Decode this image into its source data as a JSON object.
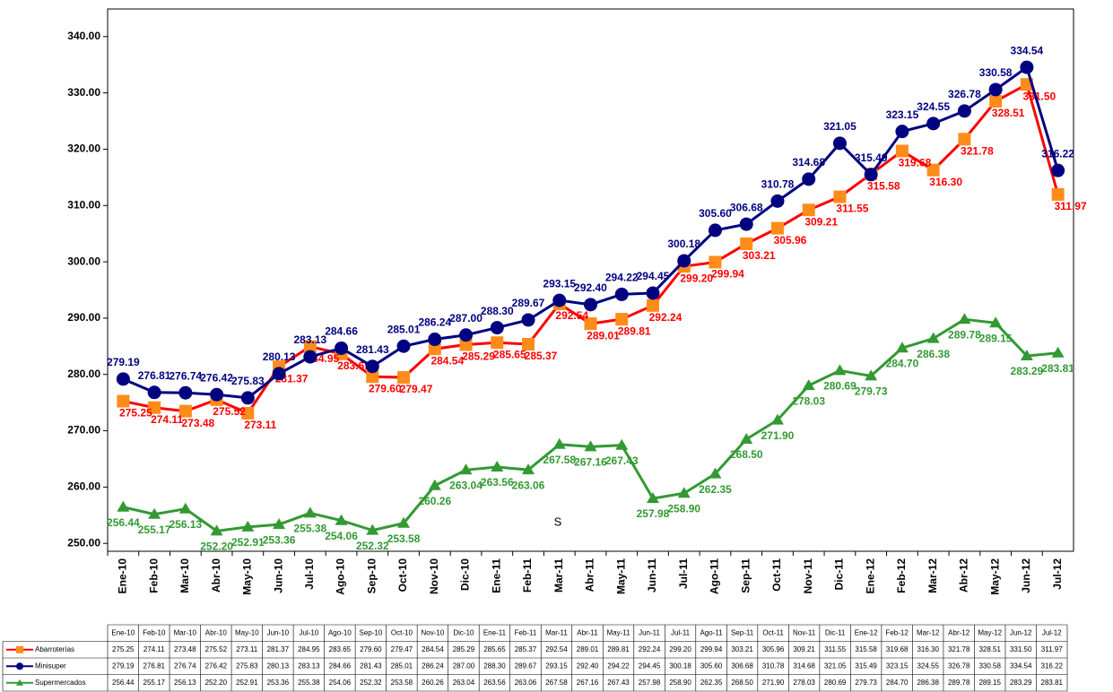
{
  "chart_data": {
    "type": "line",
    "categories": [
      "Ene-10",
      "Feb-10",
      "Mar-10",
      "Abr-10",
      "May-10",
      "Jun-10",
      "Jul-10",
      "Ago-10",
      "Sep-10",
      "Oct-10",
      "Nov-10",
      "Dic-10",
      "Ene-11",
      "Feb-11",
      "Mar-11",
      "Abr-11",
      "May-11",
      "Jun-11",
      "Jul-11",
      "Ago-11",
      "Sep-11",
      "Oct-11",
      "Nov-11",
      "Dic-11",
      "Ene-12",
      "Feb-12",
      "Mar-12",
      "Abr-12",
      "May-12",
      "Jun-12",
      "Jul-12"
    ],
    "series": [
      {
        "name": "Abarroterías",
        "color": "#ff0000",
        "marker_color": "#ff8c1a",
        "marker": "square",
        "values": [
          275.25,
          274.11,
          273.48,
          275.52,
          273.11,
          281.37,
          284.95,
          283.65,
          279.6,
          279.47,
          284.54,
          285.29,
          285.65,
          285.37,
          292.54,
          289.01,
          289.81,
          292.24,
          299.2,
          299.94,
          303.21,
          305.96,
          309.21,
          311.55,
          315.58,
          319.68,
          316.3,
          321.78,
          328.51,
          331.5,
          311.97
        ],
        "value_labels": [
          "275.25",
          "274.11",
          "273.48",
          "275.52",
          "273.11",
          "281.37",
          "284.95",
          "283.65",
          "279.60",
          "279.47",
          "284.54",
          "285.29",
          "285.65",
          "285.37",
          "292.54",
          "289.01",
          "289.81",
          "292.24",
          "299.20",
          "299.94",
          "303.21",
          "305.96",
          "309.21",
          "311.55",
          "315.58",
          "319.68",
          "316.30",
          "321.78",
          "328.51",
          "331.50",
          "311.97"
        ]
      },
      {
        "name": "Minisuper",
        "color": "#000080",
        "marker_color": "#000080",
        "marker": "circle",
        "values": [
          279.19,
          276.81,
          276.74,
          276.42,
          275.83,
          280.13,
          283.13,
          284.66,
          281.43,
          285.01,
          286.24,
          287.0,
          288.3,
          289.67,
          293.15,
          292.4,
          294.22,
          294.45,
          300.18,
          305.6,
          306.68,
          310.78,
          314.68,
          321.05,
          315.49,
          323.15,
          324.55,
          326.78,
          330.58,
          334.54,
          316.22
        ],
        "value_labels": [
          "279.19",
          "276.81",
          "276.74",
          "276.42",
          "275.83",
          "280.13",
          "283.13",
          "284.66",
          "281.43",
          "285.01",
          "286.24",
          "287.00",
          "288.30",
          "289.67",
          "293.15",
          "292.40",
          "294.22",
          "294.45",
          "300.18",
          "305.60",
          "306.68",
          "310.78",
          "314.68",
          "321.05",
          "315.49",
          "323.15",
          "324.55",
          "326.78",
          "330.58",
          "334.54",
          "316.22"
        ]
      },
      {
        "name": "Supermercados",
        "color": "#339933",
        "marker_color": "#339933",
        "marker": "triangle",
        "values": [
          256.44,
          255.17,
          256.13,
          252.2,
          252.91,
          253.36,
          255.38,
          254.06,
          252.32,
          253.58,
          260.26,
          263.04,
          263.56,
          263.06,
          267.58,
          267.16,
          267.43,
          257.98,
          258.9,
          262.35,
          268.5,
          271.9,
          278.03,
          280.69,
          279.73,
          284.7,
          286.38,
          289.78,
          289.15,
          283.29,
          283.81
        ],
        "value_labels": [
          "256.44",
          "255.17",
          "256.13",
          "252.20",
          "252.91",
          "253.36",
          "255.38",
          "254.06",
          "252.32",
          "253.58",
          "260.26",
          "263.04",
          "263.56",
          "263.06",
          "267.58",
          "267.16",
          "267.43",
          "257.98",
          "258.90",
          "262.35",
          "268.50",
          "271.90",
          "278.03",
          "280.69",
          "279.73",
          "284.70",
          "286.38",
          "289.78",
          "289.15",
          "283.29",
          "283.81"
        ]
      }
    ],
    "ylim": [
      248.6,
      344.9
    ],
    "yticks": [
      {
        "value": 250,
        "label": "250.00"
      },
      {
        "value": 260,
        "label": "260.00"
      },
      {
        "value": 270,
        "label": "270.00"
      },
      {
        "value": 280,
        "label": "280.00"
      },
      {
        "value": 290,
        "label": "290.00"
      },
      {
        "value": 300,
        "label": "300.00"
      },
      {
        "value": 310,
        "label": "310.00"
      },
      {
        "value": 320,
        "label": "320.00"
      },
      {
        "value": 330,
        "label": "330.00"
      },
      {
        "value": 340,
        "label": "340.00"
      }
    ],
    "annotation": "S",
    "grid": false,
    "data_table": true
  }
}
